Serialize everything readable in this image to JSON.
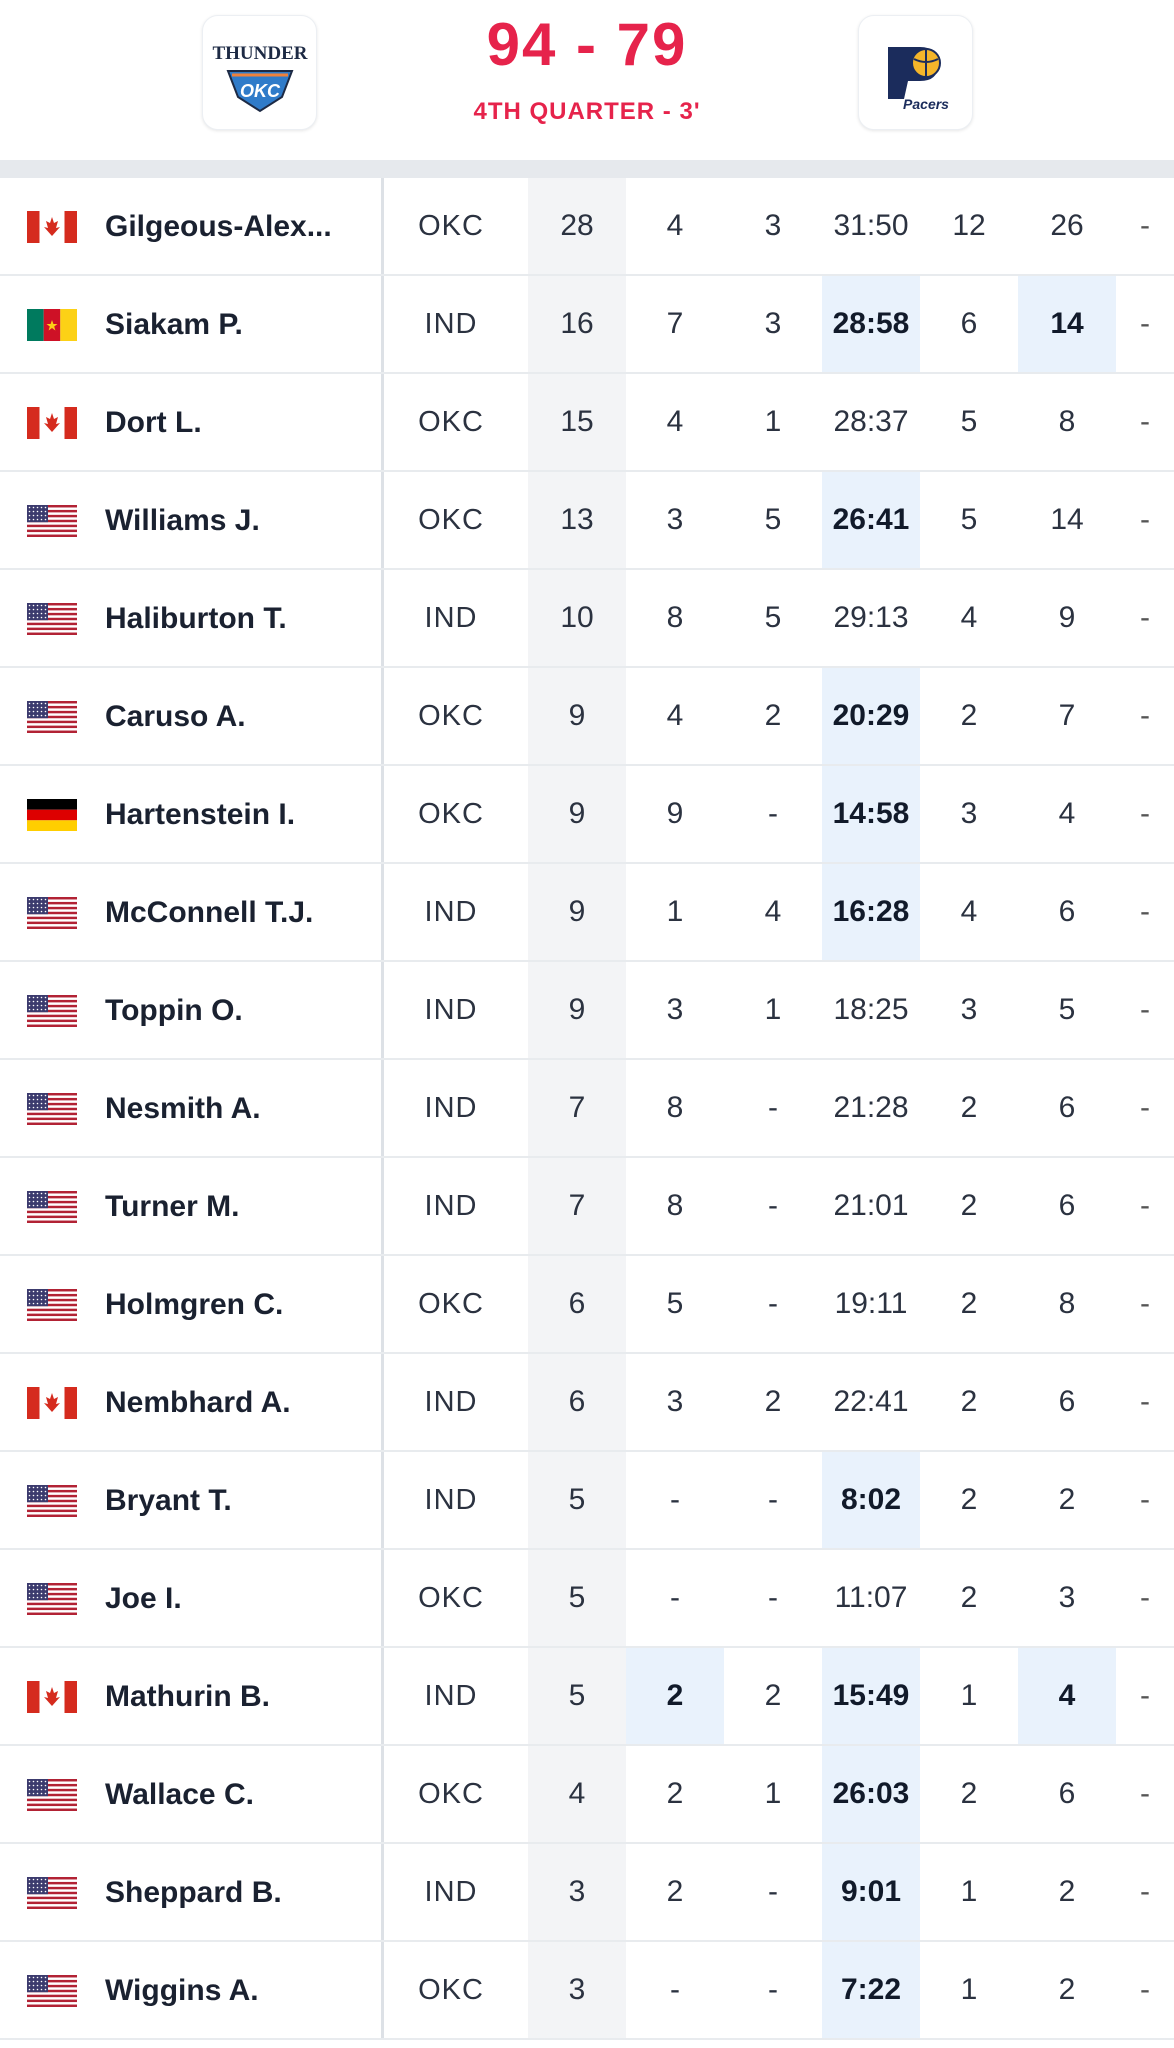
{
  "game": {
    "score": "94 - 79",
    "status": "4TH QUARTER - 3'",
    "home_logo_text": "THUNDER",
    "home_logo_sub": "OKC",
    "away_logo_text": "Pacers"
  },
  "colors": {
    "accent": "#e6234b",
    "highlight_bg": "#e9f2fc",
    "points_col_bg": "#f3f4f6"
  },
  "players": [
    {
      "flag": "canada",
      "name": "Gilgeous-Alex...",
      "team": "OKC",
      "pts": "28",
      "reb": "4",
      "ast": "3",
      "min": "31:50",
      "fg": "12",
      "fga": "26",
      "ext": "-",
      "hl": []
    },
    {
      "flag": "cameroon",
      "name": "Siakam P.",
      "team": "IND",
      "pts": "16",
      "reb": "7",
      "ast": "3",
      "min": "28:58",
      "fg": "6",
      "fga": "14",
      "ext": "-",
      "hl": [
        "min",
        "fga"
      ]
    },
    {
      "flag": "canada",
      "name": "Dort L.",
      "team": "OKC",
      "pts": "15",
      "reb": "4",
      "ast": "1",
      "min": "28:37",
      "fg": "5",
      "fga": "8",
      "ext": "-",
      "hl": []
    },
    {
      "flag": "usa",
      "name": "Williams J.",
      "team": "OKC",
      "pts": "13",
      "reb": "3",
      "ast": "5",
      "min": "26:41",
      "fg": "5",
      "fga": "14",
      "ext": "-",
      "hl": [
        "min"
      ]
    },
    {
      "flag": "usa",
      "name": "Haliburton T.",
      "team": "IND",
      "pts": "10",
      "reb": "8",
      "ast": "5",
      "min": "29:13",
      "fg": "4",
      "fga": "9",
      "ext": "-",
      "hl": []
    },
    {
      "flag": "usa",
      "name": "Caruso A.",
      "team": "OKC",
      "pts": "9",
      "reb": "4",
      "ast": "2",
      "min": "20:29",
      "fg": "2",
      "fga": "7",
      "ext": "-",
      "hl": [
        "min"
      ]
    },
    {
      "flag": "germany",
      "name": "Hartenstein I.",
      "team": "OKC",
      "pts": "9",
      "reb": "9",
      "ast": "-",
      "min": "14:58",
      "fg": "3",
      "fga": "4",
      "ext": "-",
      "hl": [
        "min"
      ]
    },
    {
      "flag": "usa",
      "name": "McConnell T.J.",
      "team": "IND",
      "pts": "9",
      "reb": "1",
      "ast": "4",
      "min": "16:28",
      "fg": "4",
      "fga": "6",
      "ext": "-",
      "hl": [
        "min"
      ]
    },
    {
      "flag": "usa",
      "name": "Toppin O.",
      "team": "IND",
      "pts": "9",
      "reb": "3",
      "ast": "1",
      "min": "18:25",
      "fg": "3",
      "fga": "5",
      "ext": "-",
      "hl": []
    },
    {
      "flag": "usa",
      "name": "Nesmith A.",
      "team": "IND",
      "pts": "7",
      "reb": "8",
      "ast": "-",
      "min": "21:28",
      "fg": "2",
      "fga": "6",
      "ext": "-",
      "hl": []
    },
    {
      "flag": "usa",
      "name": "Turner M.",
      "team": "IND",
      "pts": "7",
      "reb": "8",
      "ast": "-",
      "min": "21:01",
      "fg": "2",
      "fga": "6",
      "ext": "-",
      "hl": []
    },
    {
      "flag": "usa",
      "name": "Holmgren C.",
      "team": "OKC",
      "pts": "6",
      "reb": "5",
      "ast": "-",
      "min": "19:11",
      "fg": "2",
      "fga": "8",
      "ext": "-",
      "hl": []
    },
    {
      "flag": "canada",
      "name": "Nembhard A.",
      "team": "IND",
      "pts": "6",
      "reb": "3",
      "ast": "2",
      "min": "22:41",
      "fg": "2",
      "fga": "6",
      "ext": "-",
      "hl": []
    },
    {
      "flag": "usa",
      "name": "Bryant T.",
      "team": "IND",
      "pts": "5",
      "reb": "-",
      "ast": "-",
      "min": "8:02",
      "fg": "2",
      "fga": "2",
      "ext": "-",
      "hl": [
        "min"
      ]
    },
    {
      "flag": "usa",
      "name": "Joe I.",
      "team": "OKC",
      "pts": "5",
      "reb": "-",
      "ast": "-",
      "min": "11:07",
      "fg": "2",
      "fga": "3",
      "ext": "-",
      "hl": []
    },
    {
      "flag": "canada",
      "name": "Mathurin B.",
      "team": "IND",
      "pts": "5",
      "reb": "2",
      "ast": "2",
      "min": "15:49",
      "fg": "1",
      "fga": "4",
      "ext": "-",
      "hl": [
        "reb",
        "min",
        "fga"
      ]
    },
    {
      "flag": "usa",
      "name": "Wallace C.",
      "team": "OKC",
      "pts": "4",
      "reb": "2",
      "ast": "1",
      "min": "26:03",
      "fg": "2",
      "fga": "6",
      "ext": "-",
      "hl": [
        "min"
      ]
    },
    {
      "flag": "usa",
      "name": "Sheppard B.",
      "team": "IND",
      "pts": "3",
      "reb": "2",
      "ast": "-",
      "min": "9:01",
      "fg": "1",
      "fga": "2",
      "ext": "-",
      "hl": [
        "min"
      ]
    },
    {
      "flag": "usa",
      "name": "Wiggins A.",
      "team": "OKC",
      "pts": "3",
      "reb": "-",
      "ast": "-",
      "min": "7:22",
      "fg": "1",
      "fga": "2",
      "ext": "-",
      "hl": [
        "min"
      ]
    }
  ]
}
